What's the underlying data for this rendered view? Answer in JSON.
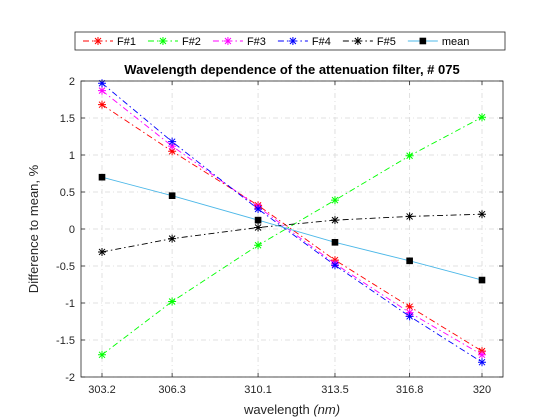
{
  "chart_data": {
    "type": "line",
    "title": "Wavelength dependence of the attenuation filter,  # 075",
    "xlabel": "wavelength",
    "xlabel_unit": "(nm)",
    "ylabel": "Difference to mean, %",
    "x": [
      303.2,
      306.3,
      310.1,
      313.5,
      316.8,
      320
    ],
    "x_tick_labels": [
      "303.2",
      "306.3",
      "310.1",
      "313.5",
      "316.8",
      "320"
    ],
    "ylim": [
      -2,
      2
    ],
    "y_ticks": [
      -2,
      -1.5,
      -1,
      -0.5,
      0,
      0.5,
      1,
      1.5,
      2
    ],
    "y_tick_labels": [
      "-2",
      "-1.5",
      "-1",
      "-0.5",
      "0",
      "0.5",
      "1",
      "1.5",
      "2"
    ],
    "grid": true,
    "legend_position": "top, outside",
    "series": [
      {
        "name": "F#1",
        "color": "#ff0000",
        "marker": "asterisk",
        "line": "dashdot",
        "values": [
          1.68,
          1.05,
          0.32,
          -0.42,
          -1.05,
          -1.65
        ]
      },
      {
        "name": "F#2",
        "color": "#00ff00",
        "marker": "asterisk",
        "line": "dashdot",
        "values": [
          -1.7,
          -0.98,
          -0.22,
          0.39,
          0.99,
          1.51
        ]
      },
      {
        "name": "F#3",
        "color": "#ff00ff",
        "marker": "asterisk",
        "line": "dashdot",
        "values": [
          1.87,
          1.12,
          0.3,
          -0.47,
          -1.13,
          -1.7
        ]
      },
      {
        "name": "F#4",
        "color": "#0000ff",
        "marker": "asterisk",
        "line": "dashdot",
        "values": [
          1.97,
          1.18,
          0.27,
          -0.49,
          -1.18,
          -1.8
        ]
      },
      {
        "name": "F#5",
        "color": "#000000",
        "marker": "asterisk",
        "line": "dashdot",
        "values": [
          -0.31,
          -0.13,
          0.02,
          0.12,
          0.17,
          0.2
        ]
      },
      {
        "name": "mean",
        "color": "#4db8e8",
        "marker": "square",
        "line": "solid",
        "values": [
          0.7,
          0.45,
          0.12,
          -0.18,
          -0.43,
          -0.69
        ]
      }
    ]
  }
}
